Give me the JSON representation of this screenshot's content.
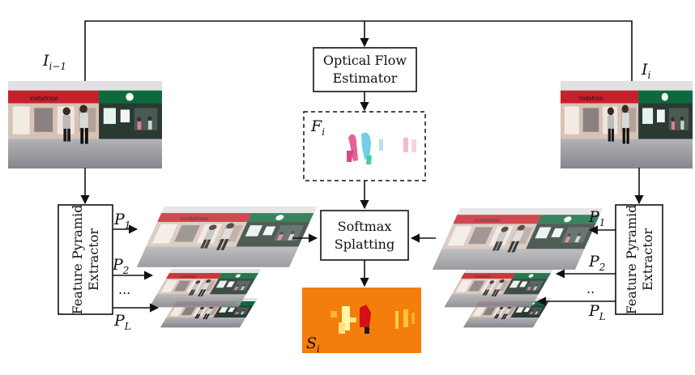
{
  "inputs": {
    "prev": {
      "label": "I",
      "sub": "i−1"
    },
    "curr": {
      "label": "I",
      "sub": "i"
    }
  },
  "flow_box": {
    "line1": "Optical Flow",
    "line2": "Estimator"
  },
  "flow_output": {
    "label": "F",
    "sub": "i"
  },
  "splat_box": {
    "line1": "Softmax",
    "line2": "Splatting"
  },
  "splat_output": {
    "label": "S",
    "sub": "i"
  },
  "pyramid_box": {
    "line1": "Feature Pyramid",
    "line2": "Extractor"
  },
  "pyramid_levels": {
    "p1": {
      "label": "P",
      "sub": "1"
    },
    "p2": {
      "label": "P",
      "sub": "2"
    },
    "dots": "...",
    "dots_right": "..",
    "pL": {
      "label": "P",
      "sub": "L"
    }
  },
  "photo_sign": "vodafone",
  "colors": {
    "line": "#111111",
    "flow_pink": "#e0508f",
    "flow_cyan": "#5cc6e4",
    "softmax_bg": "#f47e0c",
    "storefront_red": "#c8202b",
    "floor_gray": "#8e8e94"
  }
}
